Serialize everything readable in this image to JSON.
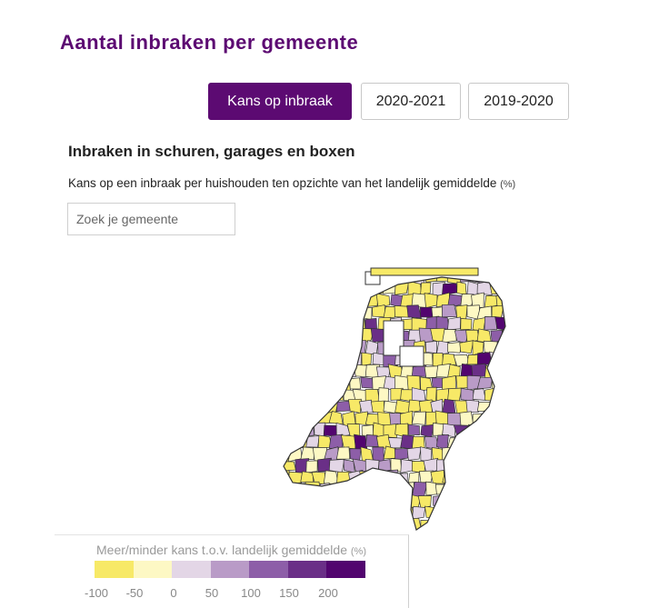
{
  "title": "Aantal inbraken per gemeente",
  "tabs": [
    {
      "label": "Kans op inbraak",
      "active": true
    },
    {
      "label": "2020-2021",
      "active": false
    },
    {
      "label": "2019-2020",
      "active": false
    }
  ],
  "subtitle": "Inbraken in schuren, garages en boxen",
  "description": "Kans op een inbraak per huishouden ten opzichte van het landelijk gemiddelde",
  "description_unit": "(%)",
  "search": {
    "placeholder": "Zoek je gemeente",
    "value": ""
  },
  "legend": {
    "title": "Meer/minder kans t.o.v. landelijk gemiddelde",
    "title_unit": "(%)",
    "colors": [
      "#f7e967",
      "#fdf8c4",
      "#e3d6e6",
      "#b99bc7",
      "#8d5ea8",
      "#6a2f87",
      "#52056f"
    ],
    "ticks": [
      "-100",
      "-50",
      "0",
      "50",
      "100",
      "150",
      "200"
    ]
  },
  "map": {
    "border_color": "#333333",
    "water_color": "#ffffff"
  }
}
